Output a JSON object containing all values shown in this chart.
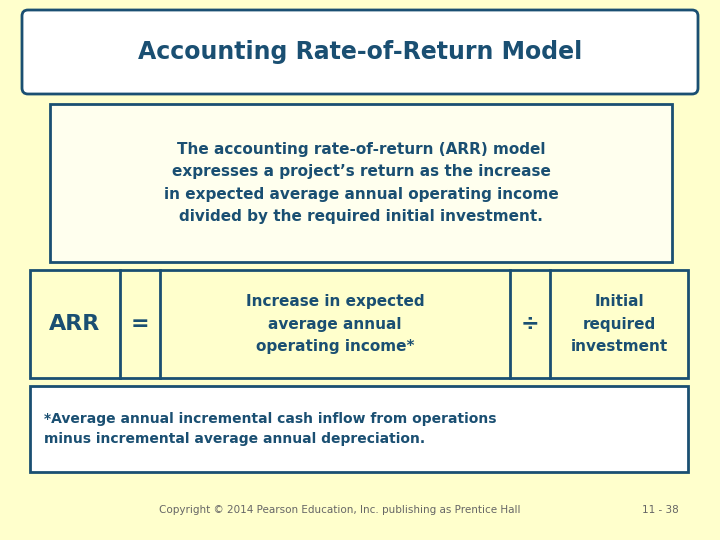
{
  "bg_color": "#ffffcc",
  "title": "Accounting Rate-of-Return Model",
  "title_color": "#1a4f72",
  "title_bg": "#ffffff",
  "title_border": "#1a4f72",
  "body_text": "The accounting rate-of-return (ARR) model\nexpresses a project’s return as the increase\nin expected average annual operating income\ndivided by the required initial investment.",
  "body_color": "#1a4f72",
  "body_bg": "#ffffee",
  "body_border": "#1a4f72",
  "arr_label": "ARR",
  "equals": "=",
  "divide": "÷",
  "numerator": "Increase in expected\naverage annual\noperating income*",
  "denominator": "Initial\nrequired\ninvestment",
  "formula_bg": "#ffffcc",
  "formula_border": "#1a4f72",
  "formula_color": "#1a4f72",
  "footnote": "*Average annual incremental cash inflow from operations\nminus incremental average annual depreciation.",
  "footnote_color": "#1a4f72",
  "footnote_bg": "#ffffff",
  "footnote_border": "#1a4f72",
  "copyright": "Copyright © 2014 Pearson Education, Inc. publishing as Prentice Hall",
  "page": "11 - 38",
  "copyright_color": "#666666"
}
